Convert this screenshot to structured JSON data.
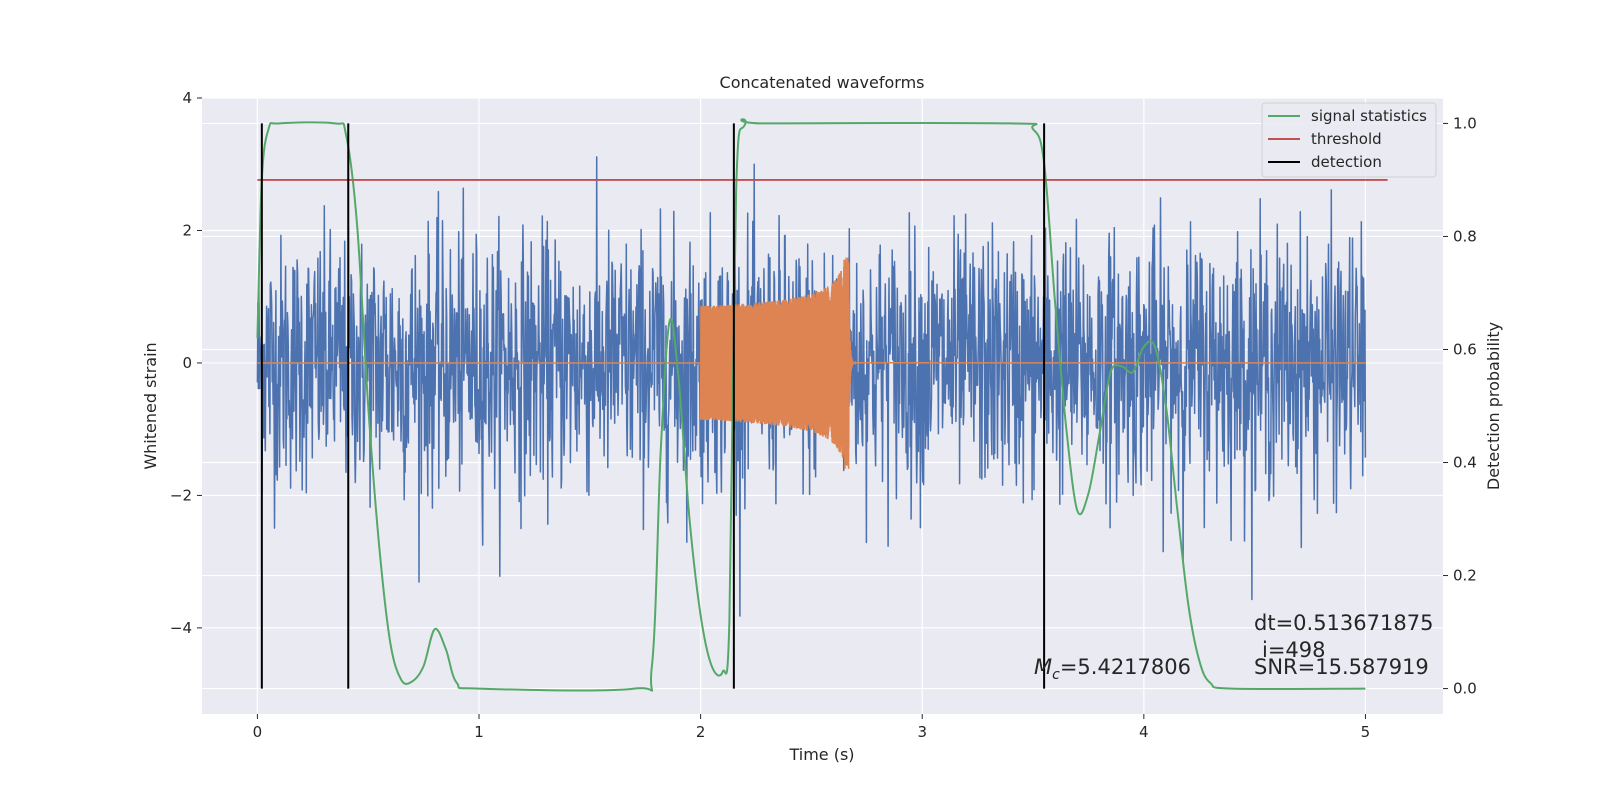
{
  "chart_data": {
    "type": "line",
    "title": "Concatenated waveforms",
    "xlabel": "Time (s)",
    "ylabel": "Whitened strain",
    "y2label": "Detection probability",
    "xlim": [
      -0.25,
      5.35
    ],
    "ylim": [
      -5.3,
      4.0
    ],
    "y2lim": [
      -0.045,
      1.045
    ],
    "xticks": [
      0,
      1,
      2,
      3,
      4,
      5
    ],
    "xtick_labels": [
      "0",
      "1",
      "2",
      "3",
      "4",
      "5"
    ],
    "yticks": [
      -4,
      -2,
      0,
      2,
      4
    ],
    "ytick_labels": [
      "−4",
      "−2",
      "0",
      "2",
      "4"
    ],
    "y2ticks": [
      0.0,
      0.2,
      0.4,
      0.6,
      0.8,
      1.0
    ],
    "y2tick_labels": [
      "0.0",
      "0.2",
      "0.4",
      "0.6",
      "0.8",
      "1.0"
    ],
    "grid": true,
    "legend_position": "top-right",
    "legend": [
      {
        "label": "signal statistics",
        "color": "#55a868"
      },
      {
        "label": "threshold",
        "color": "#c44e52"
      },
      {
        "label": "detection",
        "color": "#000000"
      }
    ],
    "series": [
      {
        "axis": "left",
        "color": "#4c72b0",
        "x_range": [
          0,
          5
        ],
        "description_values": "whitened noisy strain, roughly within [-3.6, 3.6]"
      },
      {
        "axis": "left",
        "color": "#dd8452",
        "x_range": [
          0,
          5
        ],
        "chirp_start": 2.0,
        "chirp_end": 2.67,
        "amplitude_start": 0.55,
        "amplitude_peak": 1.6
      },
      {
        "axis": "right",
        "color": "#55a868",
        "name": "signal statistics",
        "points": [
          [
            0,
            0.62
          ],
          [
            0.02,
            0.9
          ],
          [
            0.05,
            0.99
          ],
          [
            0.1,
            1.0
          ],
          [
            0.35,
            1.0
          ],
          [
            0.4,
            0.98
          ],
          [
            0.45,
            0.82
          ],
          [
            0.5,
            0.5
          ],
          [
            0.55,
            0.25
          ],
          [
            0.6,
            0.08
          ],
          [
            0.65,
            0.015
          ],
          [
            0.7,
            0.013
          ],
          [
            0.75,
            0.04
          ],
          [
            0.8,
            0.105
          ],
          [
            0.85,
            0.07
          ],
          [
            0.9,
            0.01
          ],
          [
            1.0,
            0.0
          ],
          [
            1.7,
            0.0
          ],
          [
            1.78,
            0.04
          ],
          [
            1.82,
            0.42
          ],
          [
            1.86,
            0.65
          ],
          [
            1.9,
            0.55
          ],
          [
            1.95,
            0.3
          ],
          [
            2.0,
            0.13
          ],
          [
            2.05,
            0.04
          ],
          [
            2.1,
            0.03
          ],
          [
            2.13,
            0.12
          ],
          [
            2.16,
            0.88
          ],
          [
            2.2,
            0.998
          ],
          [
            2.3,
            1.0
          ],
          [
            3.4,
            1.0
          ],
          [
            3.5,
            0.99
          ],
          [
            3.55,
            0.93
          ],
          [
            3.6,
            0.68
          ],
          [
            3.65,
            0.46
          ],
          [
            3.7,
            0.315
          ],
          [
            3.75,
            0.345
          ],
          [
            3.8,
            0.45
          ],
          [
            3.85,
            0.56
          ],
          [
            3.9,
            0.57
          ],
          [
            3.95,
            0.56
          ],
          [
            4.0,
            0.605
          ],
          [
            4.05,
            0.605
          ],
          [
            4.1,
            0.5
          ],
          [
            4.15,
            0.32
          ],
          [
            4.2,
            0.15
          ],
          [
            4.25,
            0.05
          ],
          [
            4.3,
            0.01
          ],
          [
            4.4,
            0.0
          ],
          [
            5.0,
            0.0
          ]
        ]
      },
      {
        "axis": "right",
        "color": "#c44e52",
        "name": "threshold",
        "value": 0.9,
        "x_range": [
          0,
          5.1
        ]
      },
      {
        "axis": "right",
        "color": "#000000",
        "name": "detection",
        "x": [
          0.02,
          0.41,
          2.15,
          3.55
        ],
        "y_range": [
          0,
          1
        ]
      }
    ],
    "annotations": {
      "mc_value": "=5.4217806",
      "dt": "dt=0.513671875",
      "i": "i=498",
      "snr": "SNR=15.587919"
    }
  }
}
